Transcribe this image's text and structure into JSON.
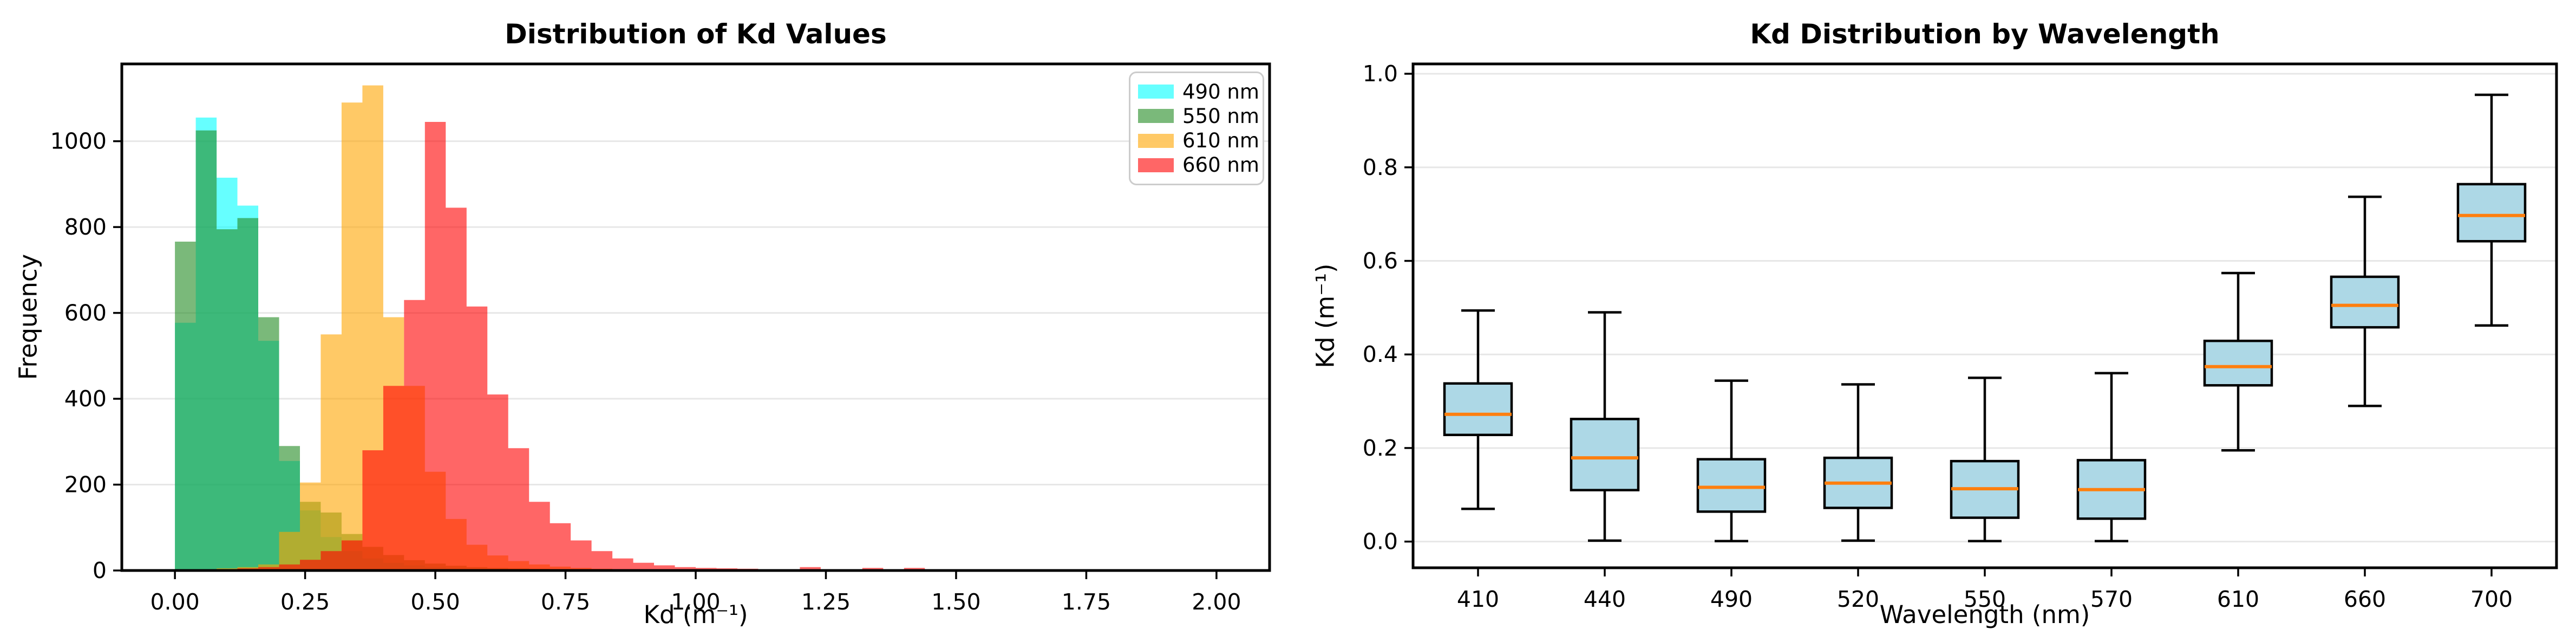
{
  "figure": {
    "background": "#ffffff",
    "grid_color": "#e7e7e7",
    "spine_color": "#000000",
    "text_color": "#000000"
  },
  "chart_data": [
    {
      "type": "histogram",
      "title": "Distribution of Kd Values",
      "xlabel": "Kd (m⁻¹)",
      "ylabel": "Frequency",
      "xlim": [
        -0.102,
        2.102
      ],
      "ylim": [
        0,
        1180
      ],
      "xticks": [
        0.0,
        0.25,
        0.5,
        0.75,
        1.0,
        1.25,
        1.5,
        1.75,
        2.0
      ],
      "xtick_labels": [
        "0.00",
        "0.25",
        "0.50",
        "0.75",
        "1.00",
        "1.25",
        "1.50",
        "1.75",
        "2.00"
      ],
      "yticks": [
        0,
        200,
        400,
        600,
        800,
        1000
      ],
      "ytick_labels": [
        "0",
        "200",
        "400",
        "600",
        "800",
        "1000"
      ],
      "grid": "horizontal",
      "bin_start": 0.0,
      "bin_width": 0.04,
      "alpha": 0.6,
      "legend_position": "upper right",
      "series": [
        {
          "name": "490 nm",
          "color": "#00FFFF",
          "counts": [
            577,
            1055,
            915,
            850,
            535,
            255,
            140,
            78,
            45,
            28,
            18,
            12,
            8,
            6,
            5,
            4,
            3,
            3,
            2,
            2,
            2,
            1,
            1,
            1,
            3,
            1,
            0,
            0,
            0,
            0,
            0,
            0,
            0,
            0,
            0,
            0,
            0,
            0,
            0,
            0,
            0,
            0,
            0,
            0,
            0,
            0,
            0,
            0,
            0,
            0
          ]
        },
        {
          "name": "550 nm",
          "color": "#228B22",
          "counts": [
            766,
            1025,
            795,
            821,
            590,
            290,
            160,
            135,
            85,
            55,
            36,
            24,
            16,
            11,
            8,
            6,
            5,
            4,
            3,
            2,
            2,
            2,
            1,
            1,
            1,
            1,
            1,
            0,
            0,
            0,
            0,
            0,
            0,
            0,
            0,
            0,
            0,
            0,
            0,
            0,
            0,
            0,
            0,
            0,
            0,
            0,
            0,
            0,
            0,
            0
          ]
        },
        {
          "name": "610 nm",
          "color": "#FFA500",
          "counts": [
            2,
            3,
            5,
            8,
            14,
            90,
            205,
            550,
            1090,
            1130,
            590,
            430,
            230,
            120,
            60,
            35,
            22,
            14,
            9,
            6,
            4,
            3,
            2,
            2,
            1,
            1,
            2,
            1,
            0,
            0,
            0,
            0,
            0,
            0,
            0,
            0,
            0,
            0,
            0,
            0,
            0,
            0,
            0,
            0,
            0,
            0,
            0,
            0,
            0,
            0
          ]
        },
        {
          "name": "660 nm",
          "color": "#FF0000",
          "counts": [
            1,
            2,
            3,
            5,
            8,
            14,
            25,
            45,
            70,
            280,
            430,
            630,
            1045,
            845,
            615,
            410,
            285,
            160,
            110,
            70,
            45,
            28,
            18,
            12,
            8,
            6,
            5,
            4,
            3,
            2,
            8,
            2,
            1,
            6,
            1,
            6,
            0,
            0,
            0,
            0,
            0,
            0,
            0,
            0,
            0,
            0,
            0,
            0,
            0,
            0
          ]
        }
      ]
    },
    {
      "type": "boxplot",
      "title": "Kd Distribution by Wavelength",
      "xlabel": "Wavelength (nm)",
      "ylabel": "Kd (m⁻¹)",
      "ylim": [
        -0.056,
        1.021
      ],
      "yticks": [
        0.0,
        0.2,
        0.4,
        0.6,
        0.8,
        1.0
      ],
      "ytick_labels": [
        "0.0",
        "0.2",
        "0.4",
        "0.6",
        "0.8",
        "1.0"
      ],
      "grid": "horizontal",
      "box_fill": "#ADD8E6",
      "box_edge": "#000000",
      "median_color": "#FF7F0E",
      "categories": [
        "410",
        "440",
        "490",
        "520",
        "550",
        "570",
        "610",
        "660",
        "700"
      ],
      "boxes": [
        {
          "label": "410",
          "whislo": 0.07,
          "q1": 0.228,
          "med": 0.272,
          "q3": 0.338,
          "whishi": 0.494
        },
        {
          "label": "440",
          "whislo": 0.002,
          "q1": 0.11,
          "med": 0.179,
          "q3": 0.262,
          "whishi": 0.49
        },
        {
          "label": "490",
          "whislo": 0.001,
          "q1": 0.064,
          "med": 0.116,
          "q3": 0.176,
          "whishi": 0.344
        },
        {
          "label": "520",
          "whislo": 0.002,
          "q1": 0.072,
          "med": 0.125,
          "q3": 0.179,
          "whishi": 0.336
        },
        {
          "label": "550",
          "whislo": 0.001,
          "q1": 0.051,
          "med": 0.113,
          "q3": 0.172,
          "whishi": 0.35
        },
        {
          "label": "570",
          "whislo": 0.001,
          "q1": 0.049,
          "med": 0.111,
          "q3": 0.174,
          "whishi": 0.36
        },
        {
          "label": "610",
          "whislo": 0.195,
          "q1": 0.334,
          "med": 0.374,
          "q3": 0.429,
          "whishi": 0.574
        },
        {
          "label": "660",
          "whislo": 0.29,
          "q1": 0.458,
          "med": 0.505,
          "q3": 0.566,
          "whishi": 0.737
        },
        {
          "label": "700",
          "whislo": 0.462,
          "q1": 0.642,
          "med": 0.697,
          "q3": 0.764,
          "whishi": 0.955
        }
      ]
    }
  ]
}
